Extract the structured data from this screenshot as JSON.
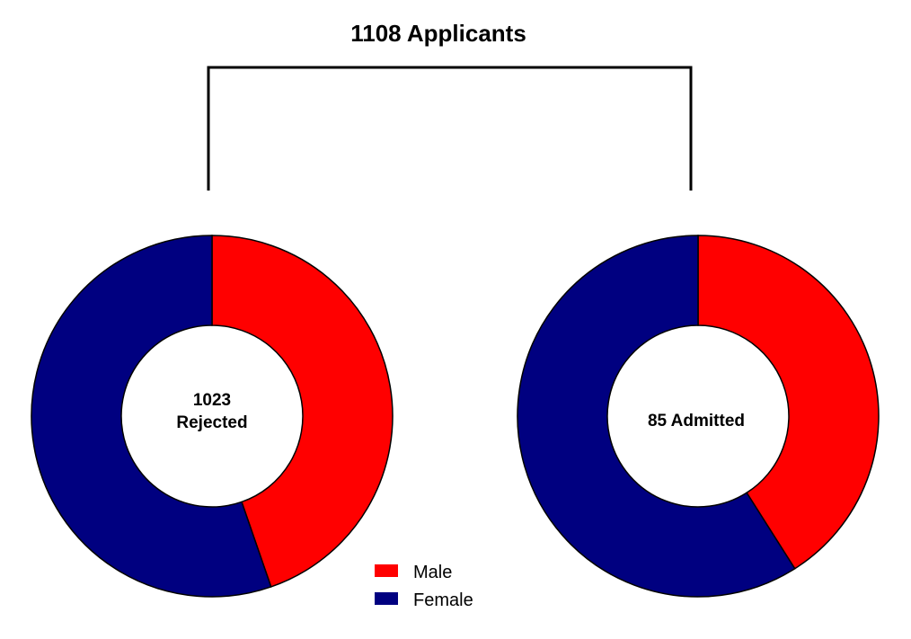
{
  "title": "1108 Applicants",
  "colors": {
    "male": "#ff0000",
    "female": "#000080",
    "outline": "#000000"
  },
  "legend": [
    {
      "label": "Male",
      "color": "#ff0000"
    },
    {
      "label": "Female",
      "color": "#000080"
    }
  ],
  "chart_data": [
    {
      "type": "pie",
      "donut": true,
      "center_label_lines": [
        "1023",
        "Rejected"
      ],
      "total": 1023,
      "series": [
        {
          "name": "Male",
          "value": 0.447
        },
        {
          "name": "Female",
          "value": 0.553
        }
      ]
    },
    {
      "type": "pie",
      "donut": true,
      "center_label_lines": [
        "85 Admitted"
      ],
      "total": 85,
      "series": [
        {
          "name": "Male",
          "value": 0.41
        },
        {
          "name": "Female",
          "value": 0.59
        }
      ]
    }
  ]
}
